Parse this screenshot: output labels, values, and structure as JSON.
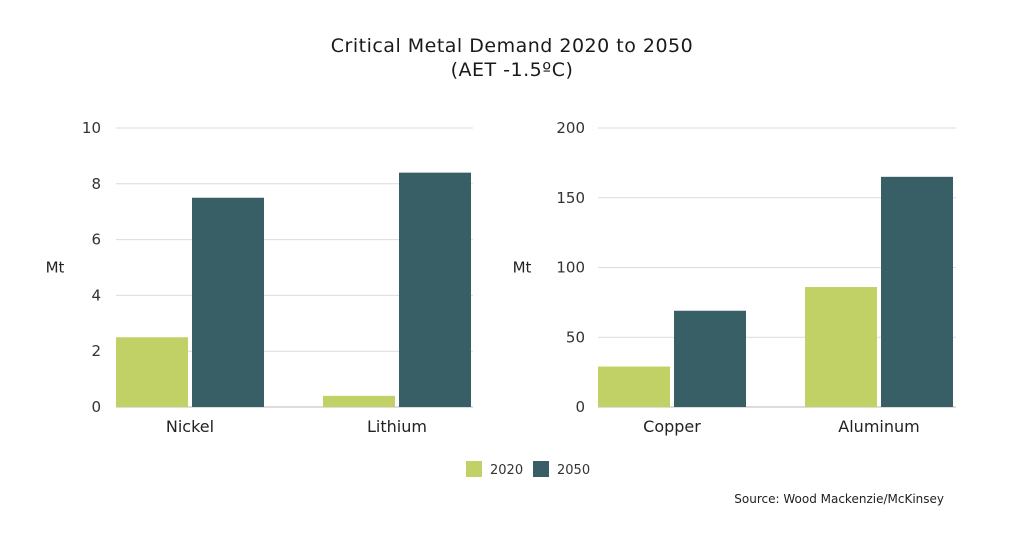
{
  "title": "Critical Metal Demand 2020 to 2050",
  "subtitle": "(AET -1.5ºC)",
  "source": "Source: Wood Mackenzie/McKinsey",
  "colors": {
    "s2020": "#c1d166",
    "s2050": "#385e66",
    "grid": "#dcdcdc",
    "axis": "#bbbbbb"
  },
  "legend": [
    "2020",
    "2050"
  ],
  "chart_data": [
    {
      "type": "bar",
      "categories": [
        "Nickel",
        "Lithium"
      ],
      "series": [
        {
          "name": "2020",
          "values": [
            2.5,
            0.4
          ]
        },
        {
          "name": "2050",
          "values": [
            7.5,
            8.4
          ]
        }
      ],
      "ylabel": "Mt",
      "ylim": [
        0,
        10
      ],
      "yticks": [
        0,
        2,
        4,
        6,
        8,
        10
      ],
      "grid": true,
      "legend": "bottom"
    },
    {
      "type": "bar",
      "categories": [
        "Copper",
        "Aluminum"
      ],
      "series": [
        {
          "name": "2020",
          "values": [
            29,
            86
          ]
        },
        {
          "name": "2050",
          "values": [
            69,
            165
          ]
        }
      ],
      "ylabel": "Mt",
      "ylim": [
        0,
        200
      ],
      "yticks": [
        0,
        50,
        100,
        150,
        200
      ],
      "grid": true,
      "legend": "bottom"
    }
  ]
}
